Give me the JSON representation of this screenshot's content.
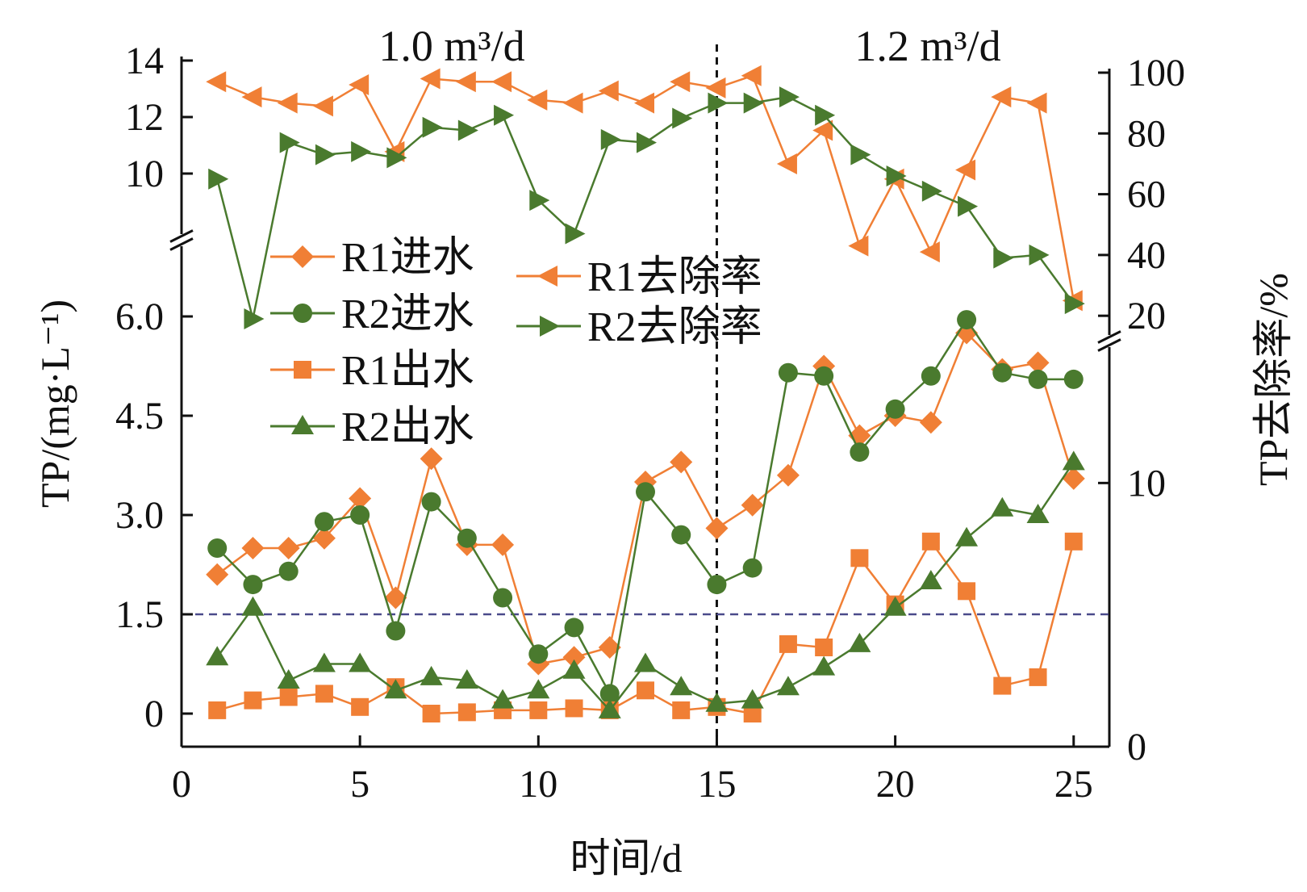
{
  "chart_data": {
    "type": "line",
    "xlabel": "时间/d",
    "ylabel_left": "TP/(mg·L⁻¹)",
    "ylabel_right": "TP去除率/%",
    "annotations": [
      {
        "text": "1.0 m³/d"
      },
      {
        "text": "1.2 m³/d"
      }
    ],
    "x_ticks": [
      "0",
      "5",
      "10",
      "15",
      "20",
      "25"
    ],
    "xlim": [
      0,
      26
    ],
    "left_axis": {
      "lower_ticks": [
        "0",
        "1.5",
        "3.0",
        "4.5",
        "6.0"
      ],
      "lower_range": [
        -0.5,
        7.0
      ],
      "upper_ticks": [
        "10",
        "12",
        "14"
      ],
      "upper_range": [
        8.0,
        14.0
      ],
      "axis_break": true
    },
    "right_axis": {
      "lower_ticks": [
        "0",
        "10"
      ],
      "lower_range": [
        0,
        15
      ],
      "upper_ticks": [
        "20",
        "40",
        "60",
        "80",
        "100"
      ],
      "upper_range": [
        15,
        100
      ],
      "axis_break": true
    },
    "reference_lines": [
      {
        "axis": "x",
        "value": 15,
        "style": "dashed",
        "color": "#111111"
      },
      {
        "axis": "y_left",
        "value": 1.5,
        "style": "dashed",
        "color": "#4a4a8a"
      }
    ],
    "x": [
      1,
      2,
      3,
      4,
      5,
      6,
      7,
      8,
      9,
      10,
      11,
      12,
      13,
      14,
      15,
      16,
      17,
      18,
      19,
      20,
      21,
      22,
      23,
      24,
      25
    ],
    "series": [
      {
        "name": "R1进水",
        "axis": "left",
        "marker": "diamond",
        "color": "#f07f35",
        "values": [
          2.1,
          2.5,
          2.5,
          2.65,
          3.25,
          1.75,
          3.85,
          2.55,
          2.55,
          0.75,
          0.85,
          1.0,
          3.5,
          3.8,
          2.8,
          3.15,
          3.6,
          5.25,
          4.2,
          4.5,
          4.4,
          5.75,
          5.2,
          5.3,
          3.55
        ]
      },
      {
        "name": "R2进水",
        "axis": "left",
        "marker": "circle",
        "color": "#4a7a2e",
        "values": [
          2.5,
          1.95,
          2.15,
          2.9,
          3.0,
          1.25,
          3.2,
          2.65,
          1.75,
          0.9,
          1.3,
          0.3,
          3.35,
          2.7,
          1.95,
          2.2,
          5.15,
          5.1,
          3.95,
          4.6,
          5.1,
          5.95,
          5.15,
          5.05,
          5.05
        ]
      },
      {
        "name": "R1出水",
        "axis": "left",
        "marker": "square",
        "color": "#f07f35",
        "values": [
          0.05,
          0.2,
          0.25,
          0.3,
          0.1,
          0.4,
          0.0,
          0.02,
          0.05,
          0.05,
          0.08,
          0.05,
          0.35,
          0.05,
          0.1,
          0.0,
          1.05,
          1.0,
          2.35,
          1.65,
          2.6,
          1.85,
          0.42,
          0.55,
          2.6
        ]
      },
      {
        "name": "R2出水",
        "axis": "left",
        "marker": "triangle-up",
        "color": "#4a7a2e",
        "values": [
          0.85,
          1.6,
          0.5,
          0.75,
          0.75,
          0.35,
          0.55,
          0.5,
          0.2,
          0.35,
          0.65,
          0.05,
          0.75,
          0.4,
          0.15,
          0.2,
          0.4,
          0.7,
          1.05,
          1.6,
          2.0,
          2.65,
          3.1,
          3.0,
          3.8
        ]
      },
      {
        "name": "R1去除率",
        "axis": "right",
        "marker": "triangle-left",
        "color": "#f07f35",
        "values": [
          97,
          92,
          90,
          89,
          96,
          74,
          98,
          97,
          97,
          91,
          90,
          94,
          90,
          97,
          95,
          99,
          70,
          81,
          43,
          65,
          41,
          68,
          92,
          90,
          25
        ]
      },
      {
        "name": "R2去除率",
        "axis": "right",
        "marker": "triangle-right",
        "color": "#4a7a2e",
        "values": [
          65,
          19,
          77,
          73,
          74,
          72,
          82,
          81,
          86,
          58,
          47,
          78,
          77,
          85,
          90,
          90,
          92,
          86,
          73,
          66,
          61,
          56,
          39,
          40,
          24
        ]
      }
    ],
    "legend": {
      "col1": [
        "R1进水",
        "R2进水",
        "R1出水",
        "R2出水"
      ],
      "col2": [
        "R1去除率",
        "R2去除率"
      ]
    }
  }
}
